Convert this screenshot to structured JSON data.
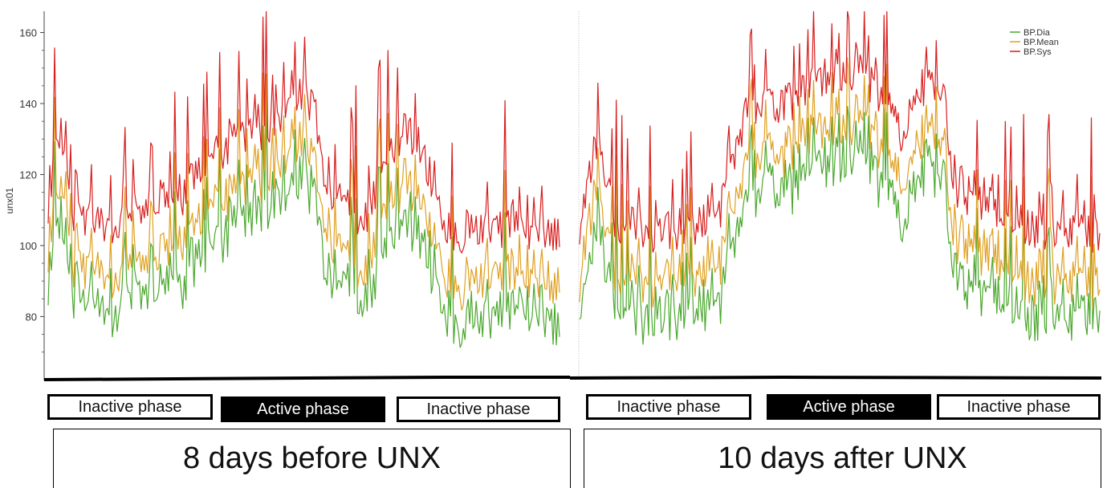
{
  "chart_data": {
    "type": "line",
    "ylabel": "unx01",
    "yticks": [
      80,
      100,
      120,
      140,
      160
    ],
    "ylim": [
      62,
      166
    ],
    "grid": false,
    "legend_placement": "top-right",
    "legend": [
      {
        "name": "BP.Dia",
        "color": "#4ba82e"
      },
      {
        "name": "BP.Mean",
        "color": "#e0a020"
      },
      {
        "name": "BP.Sys",
        "color": "#d81e1e"
      }
    ],
    "segments": [
      {
        "period": "8 days before UNX",
        "points": 320,
        "sys_envelope": [
          [
            0,
            112
          ],
          [
            0.02,
            135
          ],
          [
            0.05,
            108
          ],
          [
            0.1,
            105
          ],
          [
            0.18,
            110
          ],
          [
            0.25,
            112
          ],
          [
            0.32,
            125
          ],
          [
            0.42,
            133
          ],
          [
            0.5,
            142
          ],
          [
            0.52,
            138
          ],
          [
            0.55,
            113
          ],
          [
            0.62,
            108
          ],
          [
            0.67,
            128
          ],
          [
            0.7,
            133
          ],
          [
            0.73,
            128
          ],
          [
            0.78,
            104
          ],
          [
            0.85,
            103
          ],
          [
            0.9,
            106
          ],
          [
            0.95,
            104
          ],
          [
            1,
            103
          ]
        ],
        "mean_offset": 14,
        "dia_offset": 24
      },
      {
        "period": "10 days after UNX",
        "points": 370,
        "sys_envelope": [
          [
            0,
            104
          ],
          [
            0.03,
            130
          ],
          [
            0.07,
            106
          ],
          [
            0.15,
            103
          ],
          [
            0.22,
            106
          ],
          [
            0.28,
            112
          ],
          [
            0.32,
            138
          ],
          [
            0.4,
            140
          ],
          [
            0.45,
            146
          ],
          [
            0.53,
            150
          ],
          [
            0.58,
            142
          ],
          [
            0.62,
            130
          ],
          [
            0.66,
            145
          ],
          [
            0.7,
            142
          ],
          [
            0.72,
            115
          ],
          [
            0.78,
            112
          ],
          [
            0.85,
            106
          ],
          [
            0.92,
            104
          ],
          [
            1,
            103
          ]
        ],
        "mean_offset": 14,
        "dia_offset": 24
      }
    ],
    "phases": [
      {
        "label": "Inactive phase",
        "state": "inactive"
      },
      {
        "label": "Active phase",
        "state": "active"
      },
      {
        "label": "Inactive phase",
        "state": "inactive"
      },
      {
        "label": "Inactive phase",
        "state": "inactive"
      },
      {
        "label": "Active phase",
        "state": "active"
      },
      {
        "label": "Inactive phase",
        "state": "inactive"
      }
    ],
    "periods": [
      "8 days before UNX",
      "10 days after UNX"
    ]
  }
}
